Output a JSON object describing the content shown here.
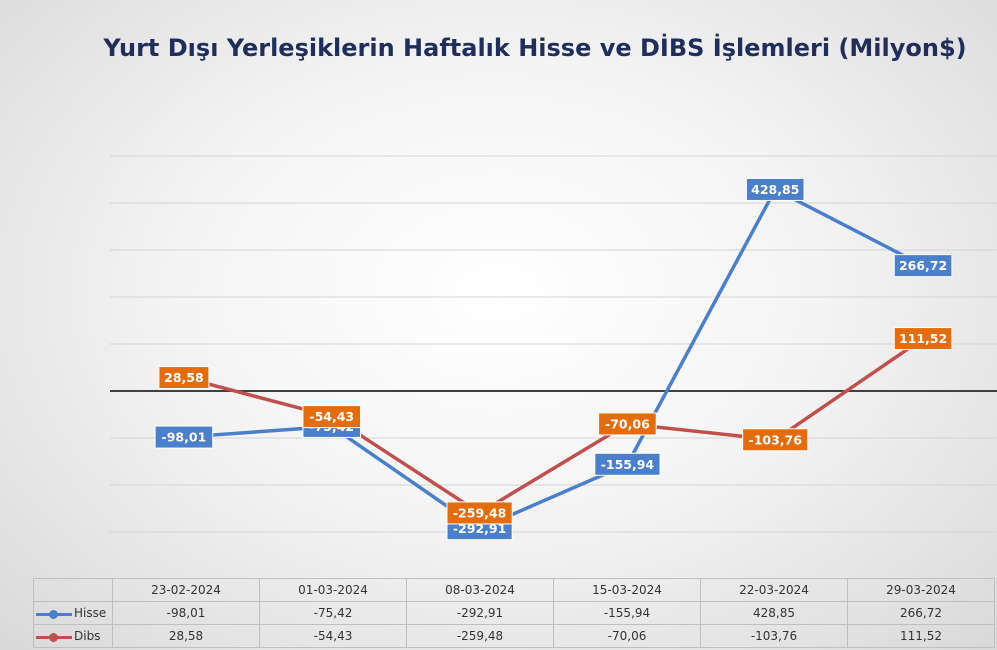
{
  "chart_data": {
    "type": "line",
    "title": "Yurt Dışı Yerleşiklerin Haftalık Hisse ve DİBS İşlemleri (Milyon$)",
    "categories": [
      "23-02-2024",
      "01-03-2024",
      "08-03-2024",
      "15-03-2024",
      "22-03-2024",
      "29-03-2024"
    ],
    "series": [
      {
        "name": "Hisse",
        "values": [
          -98.01,
          -75.42,
          -292.91,
          -155.94,
          428.85,
          266.72
        ],
        "labels": [
          "-98,01",
          "-75,42",
          "-292,91",
          "-155,94",
          "428,85",
          "266,72"
        ],
        "line_color": "#4a7fcb",
        "label_bg": "#4a7fcb"
      },
      {
        "name": "Dibs",
        "values": [
          28.58,
          -54.43,
          -259.48,
          -70.06,
          -103.76,
          111.52
        ],
        "labels": [
          "28,58",
          "-54,43",
          "-259,48",
          "-70,06",
          "-103,76",
          "111,52"
        ],
        "line_color": "#c0504d",
        "label_bg": "#e46c0a"
      }
    ],
    "ylim": [
      -300,
      500
    ],
    "grid": true,
    "legend": "data-table-bottom",
    "data_table": true
  }
}
